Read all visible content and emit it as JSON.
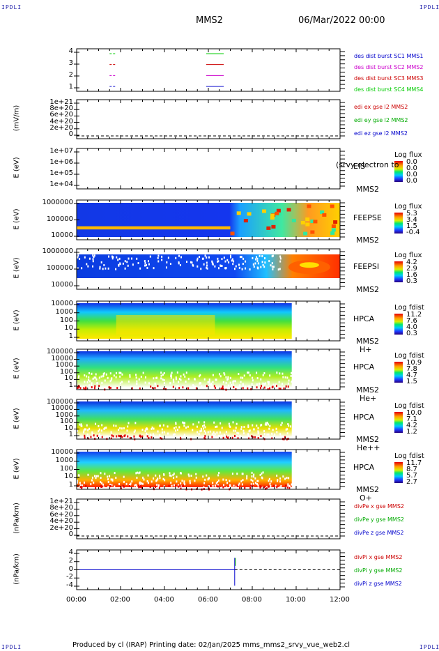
{
  "corners": {
    "tl": "IPDLI",
    "tr": "IPDLI",
    "bl": "IPDLI",
    "br": "IPDLI"
  },
  "header": {
    "spacecraft": "MMS2",
    "datetime": "06/Mar/2022 00:00"
  },
  "xaxis": {
    "ticks": [
      "00:00",
      "02:00",
      "04:00",
      "06:00",
      "08:00",
      "10:00",
      "12:00"
    ]
  },
  "footer": {
    "text": "Produced by cl (IRAP)   Printing date: 02/Jan/2025   mms_mms2_srvy_vue_web2.cl"
  },
  "panels": [
    {
      "id": "availability",
      "yticks": [
        "4",
        "3",
        "2",
        "1"
      ],
      "legend": [
        {
          "text": "des dist burst SC1 MMS1",
          "color": "#0000cc"
        },
        {
          "text": "des dist burst SC2 MMS2",
          "color": "#cc00cc"
        },
        {
          "text": "des dist burst SC3 MMS3",
          "color": "#cc0000"
        },
        {
          "text": "des dist burst SC4 MMS4",
          "color": "#00cc00"
        }
      ]
    },
    {
      "id": "edi",
      "ylabel": "(mV/m)",
      "yticks": [
        "1e+21",
        "8e+20",
        "6e+20",
        "4e+20",
        "2e+20",
        "0"
      ],
      "legend": [
        {
          "text": "edi ex gse l2 MMS2",
          "color": "#cc0000"
        },
        {
          "text": "edi ey gse l2 MMS2",
          "color": "#00aa00"
        },
        {
          "text": "edi ez gse l2 MMS2",
          "color": "#0000cc"
        }
      ]
    },
    {
      "id": "eis",
      "ylabel": "E (eV)",
      "yticks": [
        "1e+07",
        "1e+06",
        "1e+05",
        "1e+04"
      ],
      "inst": [
        "EIS",
        "MMS2"
      ],
      "overlay": "(srvy electron to",
      "cbtitle": "Log flux",
      "cbvals": [
        "0.0",
        "0.0",
        "0.0",
        "0.0"
      ]
    },
    {
      "id": "feepse",
      "ylabel": "E (eV)",
      "yticks": [
        "1000000",
        "100000",
        "10000"
      ],
      "inst": [
        "FEEPSE",
        "MMS2"
      ],
      "cbtitle": "Log flux",
      "cbvals": [
        "5.3",
        "3.4",
        "1.5",
        "-0.4"
      ]
    },
    {
      "id": "feepsi",
      "ylabel": "E (eV)",
      "yticks": [
        "1000000",
        "100000",
        "10000"
      ],
      "inst": [
        "FEEPSI",
        "MMS2"
      ],
      "cbtitle": "Log flux",
      "cbvals": [
        "4.2",
        "2.9",
        "1.6",
        "0.3"
      ]
    },
    {
      "id": "hpca_h",
      "ylabel": "E (eV)",
      "yticks": [
        "10000",
        "1000",
        "100",
        "10",
        "1"
      ],
      "inst": [
        "HPCA",
        "MMS2"
      ],
      "species": "H+",
      "cbtitle": "Log fdist",
      "cbvals": [
        "11.2",
        "7.6",
        "4.0",
        "0.3"
      ]
    },
    {
      "id": "hpca_he",
      "ylabel": "E (eV)",
      "yticks": [
        "100000",
        "10000",
        "1000",
        "100",
        "10",
        "1"
      ],
      "inst": [
        "HPCA",
        "MMS2"
      ],
      "species": "He+",
      "cbtitle": "Log fdist",
      "cbvals": [
        "10.9",
        "7.8",
        "4.7",
        "1.5"
      ]
    },
    {
      "id": "hpca_hepp",
      "ylabel": "E (eV)",
      "yticks": [
        "100000",
        "10000",
        "1000",
        "100",
        "10",
        "1"
      ],
      "inst": [
        "HPCA",
        "MMS2"
      ],
      "species": "He++",
      "cbtitle": "Log fdist",
      "cbvals": [
        "10.0",
        "7.1",
        "4.2",
        "1.2"
      ]
    },
    {
      "id": "hpca_o",
      "ylabel": "E (eV)",
      "yticks": [
        "10000",
        "1000",
        "100",
        "10",
        "1"
      ],
      "inst": [
        "HPCA",
        "MMS2"
      ],
      "species": "O+",
      "cbtitle": "Log fdist",
      "cbvals": [
        "11.7",
        "8.7",
        "5.7",
        "2.7"
      ]
    },
    {
      "id": "divpe",
      "ylabel": "(nPa/km)",
      "yticks": [
        "1e+21",
        "8e+20",
        "6e+20",
        "4e+20",
        "2e+20",
        "0"
      ],
      "legend": [
        {
          "text": "divPe x gse MMS2",
          "color": "#cc0000"
        },
        {
          "text": "divPe y gse MMS2",
          "color": "#00aa00"
        },
        {
          "text": "divPe z gse MMS2",
          "color": "#0000cc"
        }
      ]
    },
    {
      "id": "divpi",
      "ylabel": "(nPa/km)",
      "yticks": [
        "4",
        "2",
        "0",
        "-2",
        "-4"
      ],
      "legend": [
        {
          "text": "divPi x gse MMS2",
          "color": "#cc0000"
        },
        {
          "text": "divPi y gse MMS2",
          "color": "#00aa00"
        },
        {
          "text": "divPi z gse MMS2",
          "color": "#0000cc"
        }
      ]
    }
  ],
  "chart_data": {
    "type": "heatmap",
    "x": {
      "unit": "UT hours",
      "range": [
        0,
        12
      ],
      "ticks": [
        "00:00",
        "02:00",
        "04:00",
        "06:00",
        "08:00",
        "10:00",
        "12:00"
      ]
    },
    "availability_bursts": [
      {
        "sc": "MMS1",
        "y": 1,
        "segments": [
          [
            1.5,
            1.8
          ],
          [
            5.9,
            6.7
          ]
        ],
        "color": "#0000cc"
      },
      {
        "sc": "MMS2",
        "y": 2,
        "segments": [
          [
            1.5,
            1.8
          ],
          [
            5.9,
            6.7
          ]
        ],
        "color": "#cc00cc"
      },
      {
        "sc": "MMS3",
        "y": 3,
        "segments": [
          [
            1.5,
            1.8
          ],
          [
            5.9,
            6.7
          ]
        ],
        "color": "#cc0000"
      },
      {
        "sc": "MMS4",
        "y": 4,
        "segments": [
          [
            1.5,
            1.8
          ],
          [
            5.9,
            6.7
          ]
        ],
        "color": "#00cc00"
      }
    ],
    "spectrograms": [
      {
        "panel": "feepse",
        "yscale": "log",
        "ylim": [
          10000,
          1000000
        ],
        "zlabel": "Log flux",
        "zrange": [
          -0.4,
          5.3
        ],
        "xcoverage": [
          0,
          12
        ]
      },
      {
        "panel": "feepsi",
        "yscale": "log",
        "ylim": [
          10000,
          1000000
        ],
        "zlabel": "Log flux",
        "zrange": [
          0.3,
          4.2
        ],
        "xcoverage": [
          0,
          12
        ]
      },
      {
        "panel": "hpca_h",
        "yscale": "log",
        "ylim": [
          1,
          20000
        ],
        "zlabel": "Log fdist",
        "zrange": [
          0.3,
          11.2
        ],
        "xcoverage": [
          0,
          9.8
        ]
      },
      {
        "panel": "hpca_he",
        "yscale": "log",
        "ylim": [
          1,
          100000
        ],
        "zlabel": "Log fdist",
        "zrange": [
          1.5,
          10.9
        ],
        "xcoverage": [
          0,
          9.8
        ]
      },
      {
        "panel": "hpca_hepp",
        "yscale": "log",
        "ylim": [
          1,
          100000
        ],
        "zlabel": "Log fdist",
        "zrange": [
          1.2,
          10.0
        ],
        "xcoverage": [
          0,
          9.8
        ]
      },
      {
        "panel": "hpca_o",
        "yscale": "log",
        "ylim": [
          1,
          20000
        ],
        "zlabel": "Log fdist",
        "zrange": [
          2.7,
          11.7
        ],
        "xcoverage": [
          0,
          9.8
        ]
      }
    ],
    "divPi_line": {
      "ylim": [
        -5,
        5
      ],
      "baseline": 0,
      "spike": {
        "x": 7.2,
        "ymin": -4,
        "ymax": 3
      },
      "series": [
        "divPi x gse MMS2",
        "divPi y gse MMS2",
        "divPi z gse MMS2"
      ]
    },
    "edi_line": {
      "ylim": [
        0,
        1e+21
      ],
      "baseline": 0
    },
    "divPe_line": {
      "ylim": [
        0,
        1e+21
      ],
      "baseline": 0
    }
  }
}
